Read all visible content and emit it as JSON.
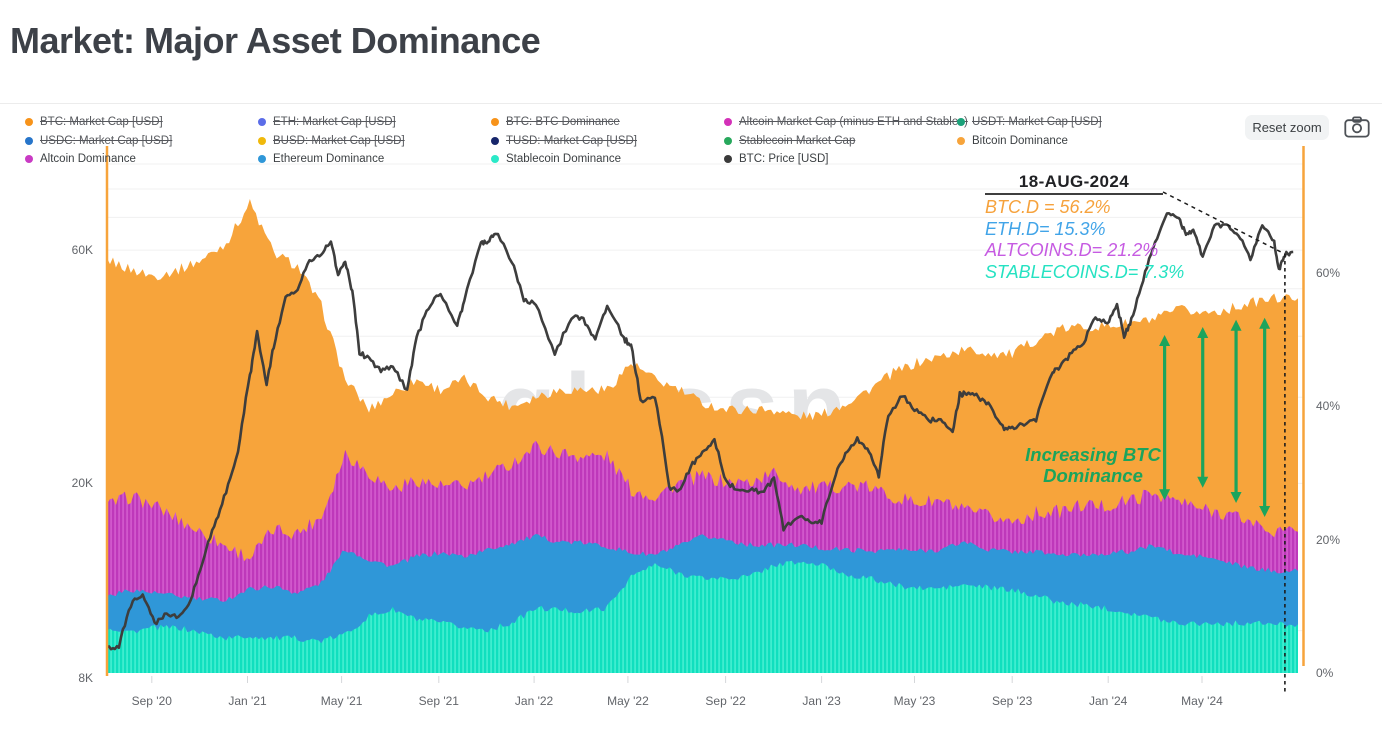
{
  "title": "Market: Major Asset Dominance",
  "watermark": "glassnode",
  "toolbar": {
    "reset_zoom_label": "Reset zoom",
    "camera_icon": "screenshot-camera"
  },
  "legend": {
    "items": [
      {
        "name": "btc-market-cap",
        "label": "BTC: Market Cap [USD]",
        "color": "#F7931A",
        "active": false
      },
      {
        "name": "eth-market-cap",
        "label": "ETH: Market Cap [USD]",
        "color": "#5B6DE8",
        "active": false
      },
      {
        "name": "btc-btc-dominance",
        "label": "BTC: BTC Dominance",
        "color": "#F7931A",
        "active": false
      },
      {
        "name": "altcoin-market-cap",
        "label": "Altcoin Market Cap (minus ETH and Stables)",
        "color": "#D331B8",
        "active": false
      },
      {
        "name": "usdt-market-cap",
        "label": "USDT: Market Cap [USD]",
        "color": "#1BA27A",
        "active": false
      },
      {
        "name": "usdc-market-cap",
        "label": "USDC: Market Cap [USD]",
        "color": "#2775CA",
        "active": false
      },
      {
        "name": "busd-market-cap",
        "label": "BUSD: Market Cap [USD]",
        "color": "#F0B90B",
        "active": false
      },
      {
        "name": "tusd-market-cap",
        "label": "TUSD: Market Cap [USD]",
        "color": "#17266B",
        "active": false
      },
      {
        "name": "stablecoin-market-cap",
        "label": "Stablecoin Market Cap",
        "color": "#27A85C",
        "active": false
      },
      {
        "name": "bitcoin-dominance",
        "label": "Bitcoin Dominance",
        "color": "#F7A43B",
        "active": true
      },
      {
        "name": "altcoin-dominance",
        "label": "Altcoin Dominance",
        "color": "#C93BC4",
        "active": true
      },
      {
        "name": "ethereum-dominance",
        "label": "Ethereum Dominance",
        "color": "#2F97D8",
        "active": true
      },
      {
        "name": "stablecoin-dominance",
        "label": "Stablecoin Dominance",
        "color": "#2BE9C8",
        "active": true
      },
      {
        "name": "btc-price",
        "label": "BTC: Price [USD]",
        "color": "#3A3A3A",
        "active": true
      }
    ]
  },
  "annotation": {
    "date": "18-AUG-2024",
    "lines": [
      {
        "text": "BTC.D = 56.2%",
        "color": "#F6A23C"
      },
      {
        "text": "ETH.D= 15.3%",
        "color": "#41A4E8"
      },
      {
        "text": "ALTCOINS.D= 21.2%",
        "color": "#C65BE2"
      },
      {
        "text": "STABLECOINS.D= 7.3%",
        "color": "#25E2C2"
      }
    ],
    "crosshair": {
      "t": 49.45,
      "price_k": 58.9
    }
  },
  "callout": {
    "line1": "Increasing BTC",
    "line2": "Dominance",
    "color": "#1CA45C",
    "arrows": [
      {
        "t": 44.4,
        "top_pct": 50.7,
        "bottom_pct": 25.9
      },
      {
        "t": 46.0,
        "top_pct": 51.9,
        "bottom_pct": 27.8
      },
      {
        "t": 47.4,
        "top_pct": 53.0,
        "bottom_pct": 25.5
      },
      {
        "t": 48.6,
        "top_pct": 53.3,
        "bottom_pct": 23.4
      }
    ]
  },
  "axes": {
    "x_ticks": [
      {
        "label": "Sep '20",
        "t": 1.88
      },
      {
        "label": "Jan '21",
        "t": 5.9
      },
      {
        "label": "May '21",
        "t": 9.85
      },
      {
        "label": "Sep '21",
        "t": 13.93
      },
      {
        "label": "Jan '22",
        "t": 17.93
      },
      {
        "label": "May '22",
        "t": 21.87
      },
      {
        "label": "Sep '22",
        "t": 25.97
      },
      {
        "label": "Jan '23",
        "t": 30.0
      },
      {
        "label": "May '23",
        "t": 33.9
      },
      {
        "label": "Sep '23",
        "t": 38.0
      },
      {
        "label": "Jan '24",
        "t": 42.03
      },
      {
        "label": "May '24",
        "t": 45.97
      }
    ],
    "left_ticks": [
      {
        "label": "8K",
        "value_k": 8
      },
      {
        "label": "20K",
        "value_k": 20
      },
      {
        "label": "60K",
        "value_k": 60
      }
    ],
    "right_ticks": [
      {
        "label": "0%",
        "value_pct": 0
      },
      {
        "label": "20%",
        "value_pct": 20
      },
      {
        "label": "40%",
        "value_pct": 40
      },
      {
        "label": "60%",
        "value_pct": 60
      }
    ]
  },
  "chart_data": {
    "type": "area+line",
    "x_unit": "months since Jul 2020, data ends 18-Aug-2024",
    "right_axis": {
      "unit": "%",
      "ticks": [
        0,
        20,
        40,
        60
      ],
      "range_visible": [
        0,
        79
      ]
    },
    "left_axis": {
      "unit": "USD",
      "scale": "log",
      "ticks_k": [
        8,
        20,
        60
      ],
      "gridlines_k": [
        10,
        20,
        30,
        40,
        50,
        60,
        70,
        80,
        90,
        100
      ]
    },
    "series_colors": {
      "bitcoin": "#F7A43B",
      "altcoin": "#BE38BA",
      "altcoin_light": "#D158CC",
      "ethereum": "#2F97D8",
      "stablecoin": "#10DFBE",
      "stablecoin_light": "#3FEDCF",
      "price": "#3D3D3D"
    },
    "series": [
      {
        "name": "Bitcoin Dominance",
        "type": "area",
        "axis": "right",
        "unit": "%",
        "monthly_values": [
          62,
          60.5,
          59.5,
          60.5,
          62,
          64.5,
          70.5,
          63,
          61,
          55,
          44,
          39.5,
          42,
          44,
          42.5,
          44,
          41.5,
          40,
          41.5,
          42.5,
          42.5,
          42.5,
          46.5,
          44,
          42.5,
          40.5,
          39.5,
          39.5,
          39.5,
          38.5,
          38.7,
          40.5,
          42.5,
          45,
          46.5,
          47.5,
          48.5,
          48,
          47.8,
          50,
          51.5,
          52,
          52,
          52.5,
          53,
          54.5,
          54,
          54.5,
          55.5,
          56.2
        ]
      },
      {
        "name": "Altcoin Dominance",
        "type": "area",
        "axis": "right",
        "unit": "%",
        "monthly_values": [
          25,
          26.5,
          25,
          23,
          21,
          19,
          17.3,
          21.5,
          21,
          23.5,
          33,
          30,
          27.5,
          29,
          28,
          28,
          29.5,
          31.5,
          34,
          33,
          32.5,
          32.5,
          27.5,
          26.5,
          28.5,
          29.5,
          28.6,
          28.6,
          30,
          27.7,
          27.7,
          28.2,
          27.8,
          26.5,
          25.5,
          25.8,
          24.2,
          23.5,
          22.7,
          24,
          24.2,
          25.2,
          25,
          26,
          27,
          25.7,
          24.5,
          24,
          22.7,
          21.2
        ]
      },
      {
        "name": "Ethereum Dominance",
        "type": "area",
        "axis": "right",
        "unit": "%",
        "monthly_values": [
          11.5,
          12.5,
          12,
          11.5,
          11,
          11,
          12.6,
          13,
          12,
          13.5,
          18.6,
          17,
          16,
          17.5,
          18,
          17.5,
          18.5,
          19.5,
          20.5,
          19.7,
          19.5,
          19,
          18,
          17.7,
          19,
          20.5,
          20,
          19.2,
          19.2,
          19.2,
          18.7,
          18.5,
          18.3,
          18.5,
          18.3,
          18.5,
          19.7,
          18.5,
          18.2,
          18.2,
          17.7,
          17.7,
          18,
          18.2,
          19.2,
          17.7,
          17.5,
          16.6,
          15.7,
          15.3
        ]
      },
      {
        "name": "Stablecoin Dominance",
        "type": "area",
        "axis": "right",
        "unit": "%",
        "monthly_values": [
          6.8,
          6.2,
          6.8,
          6.8,
          6,
          5.2,
          5.5,
          5.2,
          5.2,
          4.8,
          5.8,
          8.5,
          9.5,
          8,
          7.5,
          6.8,
          6.5,
          7.5,
          9.7,
          9.5,
          9.2,
          9.8,
          14.5,
          16.2,
          15,
          14.2,
          14.2,
          14.5,
          16.2,
          16.6,
          16.2,
          14.8,
          14.2,
          13.2,
          12.7,
          12.7,
          13.2,
          12.8,
          12.4,
          11.7,
          10.5,
          10.2,
          9.7,
          9,
          8.2,
          7.5,
          7.5,
          7.4,
          7.5,
          7.3
        ]
      },
      {
        "name": "BTC: Price [USD]",
        "type": "line",
        "axis": "left_log",
        "unit": "thousand USD",
        "points": [
          [
            0,
            9.2
          ],
          [
            0.5,
            9.3
          ],
          [
            1,
            11.3
          ],
          [
            1.5,
            11.9
          ],
          [
            2,
            10.3
          ],
          [
            2.5,
            10.8
          ],
          [
            3,
            10.7
          ],
          [
            3.5,
            11.4
          ],
          [
            4,
            13.8
          ],
          [
            4.5,
            16.3
          ],
          [
            5,
            19.2
          ],
          [
            5.5,
            23.2
          ],
          [
            6,
            33
          ],
          [
            6.3,
            40.5
          ],
          [
            6.7,
            32
          ],
          [
            7,
            38
          ],
          [
            7.5,
            48
          ],
          [
            8,
            50
          ],
          [
            8.5,
            57
          ],
          [
            9,
            58.8
          ],
          [
            9.4,
            62.5
          ],
          [
            9.7,
            53
          ],
          [
            10,
            57
          ],
          [
            10.3,
            49
          ],
          [
            10.6,
            37
          ],
          [
            11,
            36
          ],
          [
            11.5,
            34
          ],
          [
            12,
            34.5
          ],
          [
            12.6,
            31
          ],
          [
            13,
            39.5
          ],
          [
            13.5,
            46
          ],
          [
            14,
            49
          ],
          [
            14.7,
            42
          ],
          [
            15,
            47
          ],
          [
            15.7,
            62
          ],
          [
            16,
            62
          ],
          [
            16.3,
            65.5
          ],
          [
            17,
            57
          ],
          [
            17.5,
            47.5
          ],
          [
            18,
            46.8
          ],
          [
            18.8,
            36.5
          ],
          [
            19.5,
            43.8
          ],
          [
            20,
            43.2
          ],
          [
            20.5,
            39.3
          ],
          [
            21,
            46.3
          ],
          [
            21.7,
            39.5
          ],
          [
            22,
            38.3
          ],
          [
            22.4,
            29.5
          ],
          [
            23,
            30
          ],
          [
            23.6,
            19.5
          ],
          [
            24,
            19.3
          ],
          [
            24.5,
            21.6
          ],
          [
            25,
            23.3
          ],
          [
            25.5,
            24.4
          ],
          [
            26,
            20.1
          ],
          [
            26.5,
            19.4
          ],
          [
            27,
            19.4
          ],
          [
            27.5,
            19.2
          ],
          [
            28,
            20.4
          ],
          [
            28.4,
            16.1
          ],
          [
            29,
            17.1
          ],
          [
            29.5,
            16.7
          ],
          [
            30,
            16.6
          ],
          [
            30.6,
            21
          ],
          [
            31,
            23.1
          ],
          [
            31.5,
            24.6
          ],
          [
            32,
            23.3
          ],
          [
            32.4,
            20.6
          ],
          [
            32.8,
            27.5
          ],
          [
            33.4,
            30.3
          ],
          [
            34,
            28.1
          ],
          [
            34.5,
            26.9
          ],
          [
            35,
            27.2
          ],
          [
            35.5,
            25.3
          ],
          [
            35.8,
            30.4
          ],
          [
            36,
            30.5
          ],
          [
            36.5,
            30.2
          ],
          [
            37,
            29.2
          ],
          [
            37.6,
            26
          ],
          [
            38,
            25.9
          ],
          [
            38.5,
            26.5
          ],
          [
            39,
            27
          ],
          [
            39.7,
            33.7
          ],
          [
            40,
            34.6
          ],
          [
            40.5,
            37
          ],
          [
            41,
            38.7
          ],
          [
            41.5,
            43.8
          ],
          [
            42,
            42.3
          ],
          [
            42.4,
            46.3
          ],
          [
            42.7,
            39.9
          ],
          [
            43,
            43.1
          ],
          [
            43.5,
            52
          ],
          [
            44,
            62.4
          ],
          [
            44.5,
            71.8
          ],
          [
            45,
            69.6
          ],
          [
            45.3,
            64.5
          ],
          [
            45.6,
            66
          ],
          [
            46,
            58
          ],
          [
            46.5,
            67
          ],
          [
            47,
            68
          ],
          [
            47.5,
            64.5
          ],
          [
            48,
            57.5
          ],
          [
            48.5,
            67.5
          ],
          [
            49,
            62
          ],
          [
            49.2,
            54.5
          ],
          [
            49.45,
            58.9
          ],
          [
            49.8,
            59.5
          ]
        ]
      }
    ],
    "last_values": {
      "btc_dominance_pct": 56.2,
      "eth_dominance_pct": 15.3,
      "altcoin_dominance_pct": 21.2,
      "stablecoin_dominance_pct": 7.3,
      "date": "18-AUG-2024"
    }
  }
}
